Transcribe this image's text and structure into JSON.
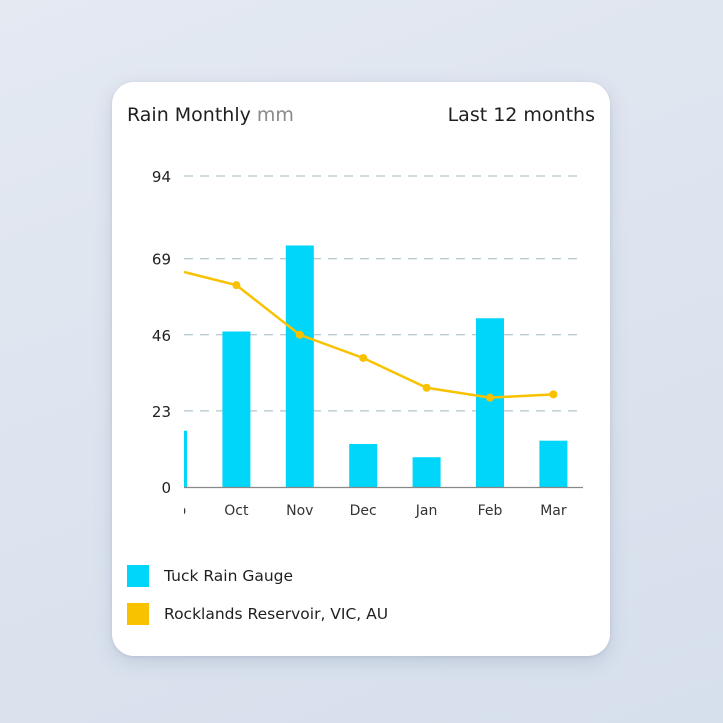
{
  "header": {
    "title": "Rain Monthly",
    "unit": "mm",
    "range_label": "Last 12 months"
  },
  "colors": {
    "bar": "#00d5fa",
    "line": "#f9c200",
    "grid": "#9fb9c4",
    "axis": "#888888"
  },
  "chart_data": {
    "type": "bar+line",
    "categories": [
      "Sep",
      "Oct",
      "Nov",
      "Dec",
      "Jan",
      "Feb",
      "Mar"
    ],
    "y_ticks": [
      0,
      23,
      46,
      69,
      94
    ],
    "ylim": [
      0,
      94
    ],
    "grid": "horizontal dashed",
    "legend_position": "bottom",
    "series": [
      {
        "name": "Tuck Rain Gauge",
        "type": "bar",
        "values": [
          17,
          47,
          73,
          13,
          9,
          51,
          14
        ]
      },
      {
        "name": "Rocklands Reservoir, VIC, AU",
        "type": "line",
        "values": [
          65,
          61,
          46,
          39,
          30,
          27,
          28
        ]
      }
    ]
  }
}
